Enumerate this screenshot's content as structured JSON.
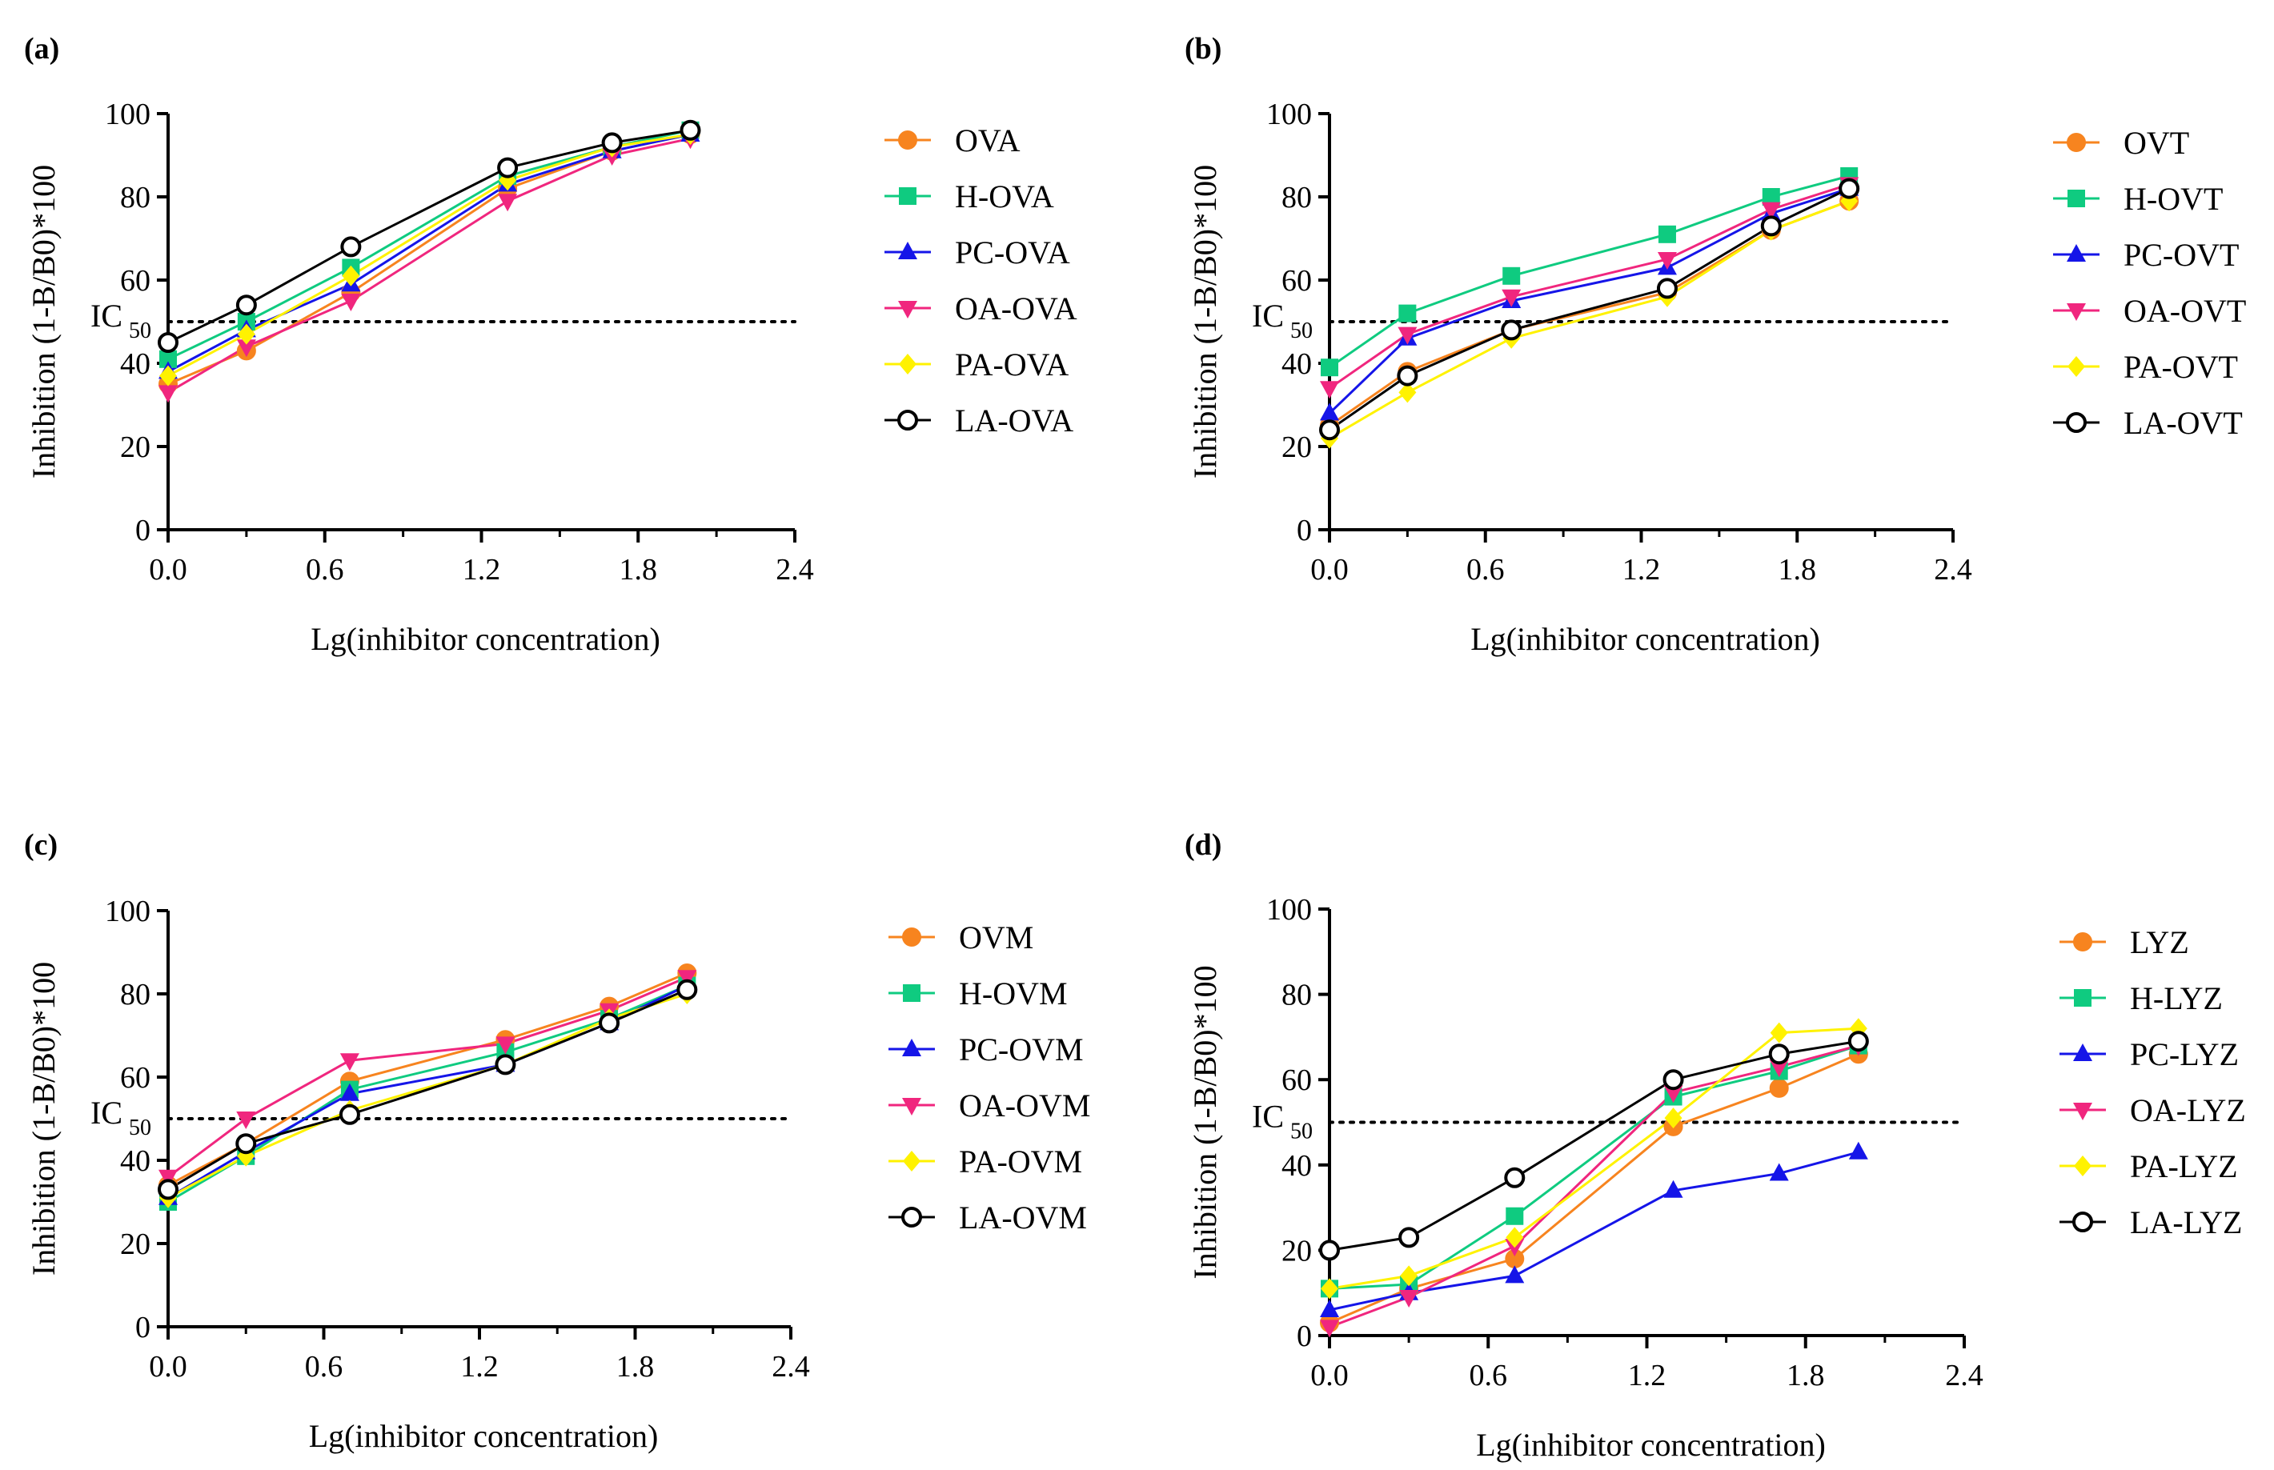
{
  "colors": {
    "orange": "#F7841F",
    "teal": "#0FCB80",
    "blue": "#1515E8",
    "pink": "#F0267E",
    "yellow": "#FFF200",
    "black": "#000000"
  },
  "chart_data": [
    {
      "panel_label": "(a)",
      "type": "line",
      "xlabel": "Lg(inhibitor concentration)",
      "ylabel": "Inhibition (1-B/B0)*100",
      "xlim": [
        0,
        2.4
      ],
      "ylim": [
        0,
        100
      ],
      "xticks": [
        "0.0",
        "0.6",
        "1.2",
        "1.8",
        "2.4"
      ],
      "yticks": [
        "0",
        "20",
        "40",
        "60",
        "80",
        "100"
      ],
      "reference_line": {
        "value": 50,
        "label": "IC",
        "subscript": "50",
        "style": "dotted"
      },
      "x": [
        0,
        0.3,
        0.7,
        1.3,
        1.7,
        2.0
      ],
      "series": [
        {
          "name": "OVA",
          "color": "#F7841F",
          "marker": "circle",
          "values": [
            35,
            43,
            57,
            82,
            91,
            95
          ]
        },
        {
          "name": "H-OVA",
          "color": "#0FCB80",
          "marker": "square",
          "values": [
            41,
            50,
            63,
            85,
            92,
            96
          ]
        },
        {
          "name": "PC-OVA",
          "color": "#1515E8",
          "marker": "triangle-up",
          "values": [
            38,
            48,
            59,
            83,
            91,
            95
          ]
        },
        {
          "name": "OA-OVA",
          "color": "#F0267E",
          "marker": "triangle-down",
          "values": [
            33,
            44,
            55,
            79,
            90,
            94
          ]
        },
        {
          "name": "PA-OVA",
          "color": "#FFF200",
          "marker": "diamond",
          "values": [
            37,
            47,
            61,
            84,
            92,
            95
          ]
        },
        {
          "name": "LA-OVA",
          "color": "#000000",
          "marker": "open-circle",
          "values": [
            45,
            54,
            68,
            87,
            93,
            96
          ]
        }
      ]
    },
    {
      "panel_label": "(b)",
      "type": "line",
      "xlabel": "Lg(inhibitor concentration)",
      "ylabel": "Inhibition (1-B/B0)*100",
      "xlim": [
        0,
        2.4
      ],
      "ylim": [
        0,
        100
      ],
      "xticks": [
        "0.0",
        "0.6",
        "1.2",
        "1.8",
        "2.4"
      ],
      "yticks": [
        "0",
        "20",
        "40",
        "60",
        "80",
        "100"
      ],
      "reference_line": {
        "value": 50,
        "label": "IC",
        "subscript": "50",
        "style": "dotted"
      },
      "x": [
        0,
        0.3,
        0.7,
        1.3,
        1.7,
        2.0
      ],
      "series": [
        {
          "name": "OVT",
          "color": "#F7841F",
          "marker": "circle",
          "values": [
            25,
            38,
            48,
            57,
            72,
            79
          ]
        },
        {
          "name": "H-OVT",
          "color": "#0FCB80",
          "marker": "square",
          "values": [
            39,
            52,
            61,
            71,
            80,
            85
          ]
        },
        {
          "name": "PC-OVT",
          "color": "#1515E8",
          "marker": "triangle-up",
          "values": [
            28,
            46,
            55,
            63,
            76,
            82
          ]
        },
        {
          "name": "OA-OVT",
          "color": "#F0267E",
          "marker": "triangle-down",
          "values": [
            34,
            47,
            56,
            65,
            77,
            83
          ]
        },
        {
          "name": "PA-OVT",
          "color": "#FFF200",
          "marker": "diamond",
          "values": [
            22,
            33,
            46,
            56,
            72,
            79
          ]
        },
        {
          "name": "LA-OVT",
          "color": "#000000",
          "marker": "open-circle",
          "values": [
            24,
            37,
            48,
            58,
            73,
            82
          ]
        }
      ]
    },
    {
      "panel_label": "(c)",
      "type": "line",
      "xlabel": "Lg(inhibitor concentration)",
      "ylabel": "Inhibition (1-B/B0)*100",
      "xlim": [
        0,
        2.4
      ],
      "ylim": [
        0,
        100
      ],
      "xticks": [
        "0.0",
        "0.6",
        "1.2",
        "1.8",
        "2.4"
      ],
      "yticks": [
        "0",
        "20",
        "40",
        "60",
        "80",
        "100"
      ],
      "reference_line": {
        "value": 50,
        "label": "IC",
        "subscript": "50",
        "style": "dotted"
      },
      "x": [
        0,
        0.3,
        0.7,
        1.3,
        1.7,
        2.0
      ],
      "series": [
        {
          "name": "OVM",
          "color": "#F7841F",
          "marker": "circle",
          "values": [
            34,
            44,
            59,
            69,
            77,
            85
          ]
        },
        {
          "name": "H-OVM",
          "color": "#0FCB80",
          "marker": "square",
          "values": [
            30,
            41,
            57,
            66,
            74,
            82
          ]
        },
        {
          "name": "PC-OVM",
          "color": "#1515E8",
          "marker": "triangle-up",
          "values": [
            31,
            42,
            56,
            63,
            73,
            82
          ]
        },
        {
          "name": "OA-OVM",
          "color": "#F0267E",
          "marker": "triangle-down",
          "values": [
            36,
            50,
            64,
            68,
            76,
            84
          ]
        },
        {
          "name": "PA-OVM",
          "color": "#FFF200",
          "marker": "diamond",
          "values": [
            31,
            41,
            52,
            63,
            74,
            80
          ]
        },
        {
          "name": "LA-OVM",
          "color": "#000000",
          "marker": "open-circle",
          "values": [
            33,
            44,
            51,
            63,
            73,
            81
          ]
        }
      ]
    },
    {
      "panel_label": "(d)",
      "type": "line",
      "xlabel": "Lg(inhibitor concentration)",
      "ylabel": "Inhibition (1-B/B0)*100",
      "xlim": [
        0,
        2.4
      ],
      "ylim": [
        0,
        100
      ],
      "xticks": [
        "0.0",
        "0.6",
        "1.2",
        "1.8",
        "2.4"
      ],
      "yticks": [
        "0",
        "20",
        "40",
        "60",
        "80",
        "100"
      ],
      "reference_line": {
        "value": 50,
        "label": "IC",
        "subscript": "50",
        "style": "dotted"
      },
      "x": [
        0,
        0.3,
        0.7,
        1.3,
        1.7,
        2.0
      ],
      "series": [
        {
          "name": "LYZ",
          "color": "#F7841F",
          "marker": "circle",
          "values": [
            3,
            11,
            18,
            49,
            58,
            66
          ]
        },
        {
          "name": "H-LYZ",
          "color": "#0FCB80",
          "marker": "square",
          "values": [
            11,
            12,
            28,
            56,
            62,
            68
          ]
        },
        {
          "name": "PC-LYZ",
          "color": "#1515E8",
          "marker": "triangle-up",
          "values": [
            6,
            10,
            14,
            34,
            38,
            43
          ]
        },
        {
          "name": "OA-LYZ",
          "color": "#F0267E",
          "marker": "triangle-down",
          "values": [
            2,
            9,
            21,
            57,
            63,
            68
          ]
        },
        {
          "name": "PA-LYZ",
          "color": "#FFF200",
          "marker": "diamond",
          "values": [
            11,
            14,
            23,
            51,
            71,
            72
          ]
        },
        {
          "name": "LA-LYZ",
          "color": "#000000",
          "marker": "open-circle",
          "values": [
            20,
            23,
            37,
            60,
            66,
            69
          ]
        }
      ]
    }
  ]
}
